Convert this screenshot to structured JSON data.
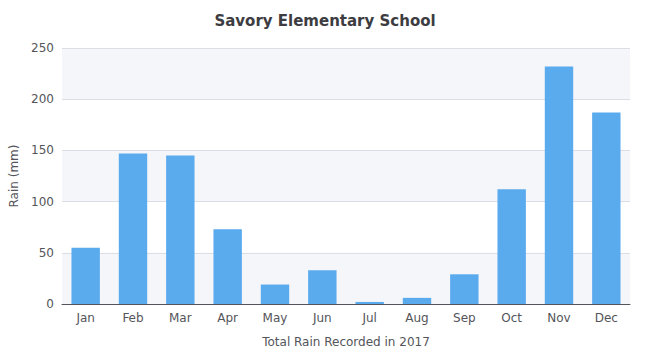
{
  "chart_data": {
    "type": "bar",
    "title": "Savory Elementary School",
    "x_label": "Total Rain Recorded in 2017",
    "y_label": "Rain (mm)",
    "categories": [
      "Jan",
      "Feb",
      "Mar",
      "Apr",
      "May",
      "Jun",
      "Jul",
      "Aug",
      "Sep",
      "Oct",
      "Nov",
      "Dec"
    ],
    "values": [
      55,
      147,
      145,
      73,
      19,
      33,
      2,
      6,
      29,
      112,
      232,
      187
    ],
    "color": "#5aaaee",
    "ylim": [
      0,
      250
    ],
    "yticks": [
      0,
      50,
      100,
      150,
      200,
      250
    ],
    "grid": true
  }
}
